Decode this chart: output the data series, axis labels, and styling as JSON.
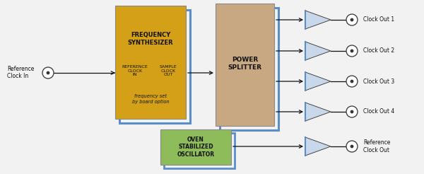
{
  "bg_color": "#f2f2f2",
  "fig_bg": "#f2f2f2",
  "freq_synth_fill": "#d4a017",
  "power_splitter_fill": "#c8a882",
  "oven_osc_fill": "#8fbc5a",
  "amp_fill": "#c8d8ea",
  "shadow_color": "#5b8ec9",
  "box_edge_color": "#888888",
  "arrow_color": "#111111",
  "text_color": "#111111",
  "clock_outputs": [
    "Clock Out 1",
    "Clock Out 2",
    "Clock Out 3",
    "Clock Out 4"
  ],
  "ref_clock_out": "Reference\nClock Out",
  "ref_clock_in_line1": "Reference",
  "ref_clock_in_line2": "Clock In"
}
